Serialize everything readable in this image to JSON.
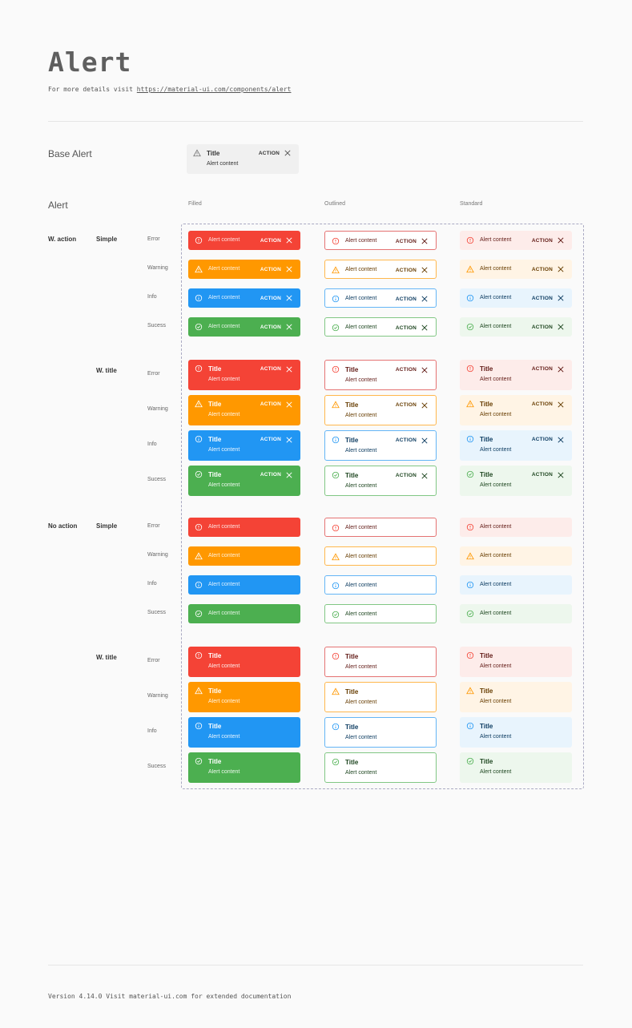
{
  "header": {
    "title": "Alert",
    "subtitle_prefix": "For more details visit",
    "link": "https://material-ui.com/components/alert"
  },
  "base_alert": {
    "label": "Base Alert",
    "title": "Title",
    "content": "Alert content",
    "action": "ACTION"
  },
  "alert_section": {
    "label": "Alert"
  },
  "columns": [
    "Filled",
    "Outlined",
    "Standard"
  ],
  "groups": [
    {
      "label": "W. action",
      "sub": "Simple",
      "has_title": false,
      "has_action": true
    },
    {
      "label": "",
      "sub": "W. title",
      "has_title": true,
      "has_action": true
    },
    {
      "label": "No action",
      "sub": "Simple",
      "has_title": false,
      "has_action": false
    },
    {
      "label": "",
      "sub": "W. title",
      "has_title": true,
      "has_action": false
    }
  ],
  "severities": [
    {
      "label": "Error",
      "icon": "error-outline-icon",
      "filled": "#f44336",
      "outline": "#e57373",
      "text": "#611a15",
      "icon_color": "#f44336",
      "standard": "#fdecea"
    },
    {
      "label": "Warning",
      "icon": "warning-icon",
      "filled": "#ff9800",
      "outline": "#ffb74d",
      "text": "#663c00",
      "icon_color": "#ff9800",
      "standard": "#fff4e5"
    },
    {
      "label": "Info",
      "icon": "info-outline-icon",
      "filled": "#2196f3",
      "outline": "#64b5f6",
      "text": "#0d3c61",
      "icon_color": "#2196f3",
      "standard": "#e8f4fd"
    },
    {
      "label": "Sucess",
      "icon": "success-outline-icon",
      "filled": "#4caf50",
      "outline": "#81c784",
      "text": "#1e4620",
      "icon_color": "#4caf50",
      "standard": "#edf7ed"
    }
  ],
  "alert_text": {
    "title": "Title",
    "content": "Alert content",
    "action": "ACTION"
  },
  "footer": "Version 4.14.0  Visit material-ui.com for extended documentation"
}
